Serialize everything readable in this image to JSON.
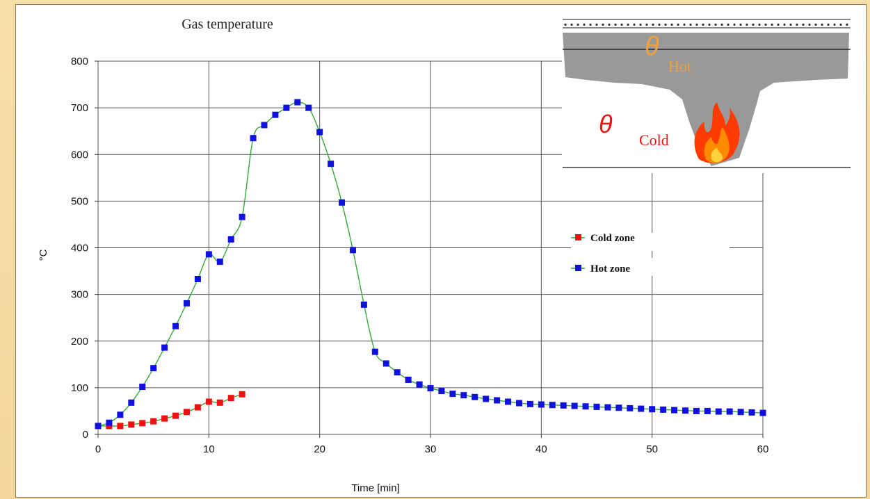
{
  "chart_data": {
    "type": "line",
    "title": "Gas temperature",
    "xlabel": "Time [min]",
    "ylabel": "°C",
    "xlim": [
      0,
      60
    ],
    "ylim": [
      0,
      800
    ],
    "xticks": [
      "0",
      "10",
      "20",
      "30",
      "40",
      "50",
      "60"
    ],
    "yticks": [
      "0",
      "100",
      "200",
      "300",
      "400",
      "500",
      "600",
      "700",
      "800"
    ],
    "grid": true,
    "legend_position": "right",
    "series": [
      {
        "name": "Cold zone",
        "color": "#ee1111",
        "line_color": "#33aa33",
        "x": [
          0,
          1,
          2,
          3,
          4,
          5,
          6,
          7,
          8,
          9,
          10,
          11,
          12,
          13
        ],
        "y": [
          18,
          18,
          18,
          21,
          24,
          28,
          34,
          40,
          48,
          58,
          70,
          68,
          78,
          86
        ]
      },
      {
        "name": "Hot zone",
        "color": "#1111dd",
        "line_color": "#33aa33",
        "x": [
          0,
          1,
          2,
          3,
          4,
          5,
          6,
          7,
          8,
          9,
          10,
          11,
          12,
          13,
          14,
          15,
          16,
          17,
          18,
          19,
          20,
          21,
          22,
          23,
          24,
          25,
          26,
          27,
          28,
          29,
          30,
          31,
          32,
          33,
          34,
          35,
          36,
          37,
          38,
          39,
          40,
          41,
          42,
          43,
          44,
          45,
          46,
          47,
          48,
          49,
          50,
          51,
          52,
          53,
          54,
          55,
          56,
          57,
          58,
          59,
          60
        ],
        "y": [
          18,
          25,
          42,
          68,
          102,
          142,
          186,
          232,
          281,
          333,
          386,
          370,
          418,
          466,
          635,
          663,
          685,
          700,
          712,
          700,
          648,
          580,
          497,
          395,
          278,
          177,
          152,
          133,
          117,
          107,
          99,
          93,
          87,
          84,
          80,
          76,
          73,
          70,
          67,
          65,
          64,
          63,
          62,
          61,
          60,
          59,
          58,
          57,
          56,
          55,
          54,
          53,
          52,
          51,
          50,
          50,
          49,
          49,
          48,
          47,
          46
        ]
      }
    ]
  },
  "inset": {
    "hot_symbol": "θ",
    "hot_label": "Hot",
    "cold_symbol": "θ",
    "cold_label": "Cold",
    "smoke_color": "#999999",
    "flame_icon": "flame-icon"
  }
}
